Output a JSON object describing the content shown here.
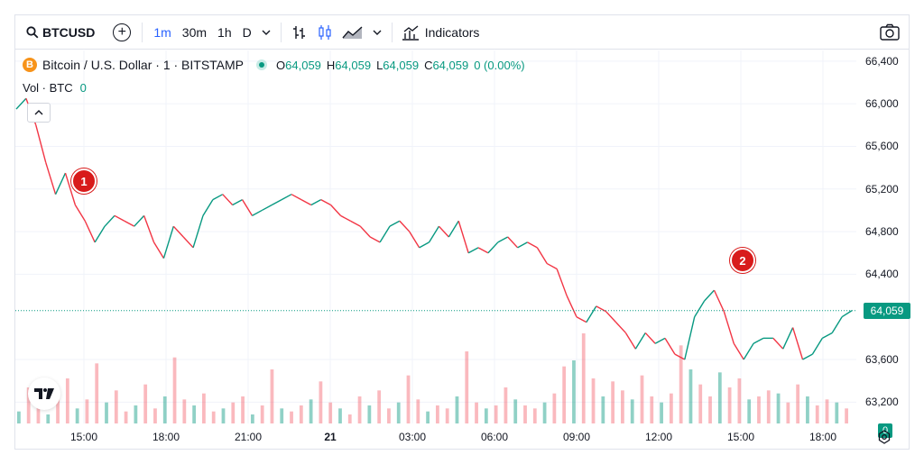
{
  "toolbar": {
    "symbol": "BTCUSD",
    "intervals": [
      "1m",
      "30m",
      "1h",
      "D"
    ],
    "active_interval": "1m",
    "indicators_label": "Indicators"
  },
  "legend": {
    "title": "Bitcoin / U.S. Dollar · 1 · BITSTAMP",
    "coin_symbol": "B",
    "open_key": "O",
    "open": "64,059",
    "high_key": "H",
    "high": "64,059",
    "low_key": "L",
    "low": "64,059",
    "close_key": "C",
    "close": "64,059",
    "change": "0 (0.00%)",
    "volume_label": "Vol · BTC",
    "volume_value": "0"
  },
  "markers": [
    "1",
    "2"
  ],
  "last_price_label": "64,059",
  "volume_tag": "0",
  "colors": {
    "up": "#089981",
    "down": "#f23645",
    "accent": "#2962ff",
    "marker": "#d81b1b"
  },
  "chart_data": {
    "type": "line",
    "series": [
      {
        "values": [
          65950,
          66050,
          65800,
          65450,
          65150,
          65350,
          65050,
          64900,
          64700,
          64850,
          64950,
          64900,
          64850,
          64950,
          64700,
          64550,
          64850,
          64750,
          64650,
          64950,
          65100,
          65150,
          65050,
          65100,
          64950,
          65000,
          65050,
          65100,
          65150,
          65100,
          65050,
          65100,
          65050,
          64950,
          64900,
          64850,
          64750,
          64700,
          64850,
          64900,
          64800,
          64650,
          64700,
          64850,
          64750,
          64900,
          64600,
          64650,
          64600,
          64700,
          64750,
          64650,
          64700,
          64650,
          64500,
          64450,
          64200,
          64000,
          63950,
          64100,
          64050,
          63950,
          63850,
          63700,
          63850,
          63750,
          63800,
          63650,
          63600,
          64000,
          64150,
          64250,
          64050,
          63750,
          63600,
          63750,
          63800,
          63800,
          63700,
          63900,
          63600,
          63650,
          63800,
          63850,
          64000,
          64059
        ]
      }
    ],
    "ylim": [
      63000,
      66500
    ],
    "y_ticks": [
      "66,400",
      "66,000",
      "65,600",
      "65,200",
      "64,800",
      "64,400",
      "63,600",
      "63,200"
    ],
    "x_ticks": [
      "15:00",
      "18:00",
      "21:00",
      "21",
      "03:00",
      "06:00",
      "09:00",
      "12:00",
      "15:00",
      "18:00"
    ],
    "volume": {
      "values": [
        0.4,
        1.2,
        0.6,
        0.3,
        0.9,
        1.5,
        0.5,
        0.8,
        2.0,
        0.7,
        1.1,
        0.4,
        0.6,
        1.3,
        0.5,
        0.9,
        2.2,
        0.8,
        0.6,
        1.0,
        0.4,
        0.5,
        0.7,
        0.9,
        0.3,
        0.6,
        1.8,
        0.5,
        0.4,
        0.6,
        0.8,
        1.4,
        0.7,
        0.5,
        0.3,
        0.9,
        0.6,
        1.1,
        0.5,
        0.7,
        1.6,
        0.8,
        0.4,
        0.6,
        0.5,
        0.9,
        2.4,
        0.7,
        0.5,
        0.6,
        1.2,
        0.8,
        0.6,
        0.5,
        0.7,
        1.0,
        1.9,
        2.1,
        3.0,
        1.5,
        0.9,
        1.4,
        1.1,
        0.8,
        1.6,
        0.9,
        0.7,
        1.0,
        2.6,
        1.8,
        1.3,
        0.9,
        1.7,
        1.2,
        1.5,
        0.8,
        0.9,
        1.1,
        1.0,
        0.7,
        1.3,
        0.9,
        0.6,
        0.8,
        0.7,
        0.5
      ]
    }
  }
}
